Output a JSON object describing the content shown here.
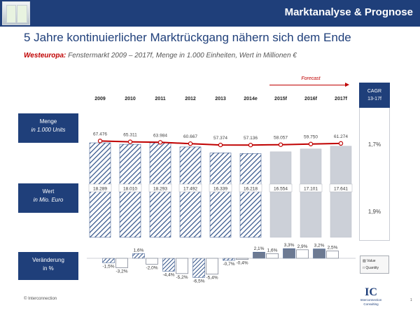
{
  "header": {
    "band_title": "Marktanalyse & Prognose",
    "title": "5 Jahre kontinuierlicher Marktrückgang nähern sich dem Ende",
    "subtitle_region": "Westeuropa:",
    "subtitle_rest": " Fenstermarkt 2009 – 2017f, Menge in 1.000 Einheiten, Wert in Millionen €"
  },
  "row_labels": {
    "menge_line1": "Menge",
    "menge_line2": "in 1.000 Units",
    "wert_line1": "Wert",
    "wert_line2": "in Mio. Euro",
    "change_line1": "Veränderung",
    "change_line2": "in %"
  },
  "forecast_label": "Forecast",
  "cagr": {
    "header_line1": "CAGR",
    "header_line2": "13-17f",
    "quantity": "1,7%",
    "value": "1,9%"
  },
  "legend": {
    "value": "Value",
    "quantity": "Quantity"
  },
  "footer": {
    "copyright": "© Interconnection",
    "page": "1"
  },
  "logo": {
    "mark": "IC",
    "line1": "Interconnection",
    "line2": "Consulting"
  },
  "colors": {
    "navy": "#1f3f7a",
    "red": "#c00000",
    "actual_hatch": "#2e4f86",
    "forecast_fill": "#ccd0d8"
  },
  "chart_data": {
    "type": "bar",
    "categories": [
      "2009",
      "2010",
      "2011",
      "2012",
      "2013",
      "2014e",
      "2015f",
      "2016f",
      "2017f"
    ],
    "forecast_from_index": 6,
    "series": [
      {
        "name": "Wert in Mio. Euro",
        "kind": "bar",
        "values": [
          18289,
          18010,
          18293,
          17492,
          16339,
          16218,
          16554,
          17101,
          17641
        ],
        "labels": [
          "18.289",
          "18.010",
          "18.293",
          "17.492",
          "16.339",
          "16.218",
          "16.554",
          "17.101",
          "17.641"
        ]
      },
      {
        "name": "Menge in 1.000 Units",
        "kind": "line",
        "values": [
          67476,
          65311,
          63984,
          60667,
          57374,
          57136,
          58057,
          59750,
          61274
        ],
        "labels": [
          "67.476",
          "65.311",
          "63.984",
          "60.667",
          "57.374",
          "57.136",
          "58.057",
          "59.750",
          "61.274"
        ]
      }
    ],
    "change_pct": {
      "value": [
        -1.5,
        1.6,
        -4.4,
        -6.5,
        -0.7,
        2.1,
        3.3,
        3.2
      ],
      "value_labels": [
        "-1,5%",
        "1,6%",
        "-4,4%",
        "-6,5%",
        "-0,7%",
        "2,1%",
        "3,3%",
        "3,2%"
      ],
      "quantity": [
        -3.2,
        -2.0,
        -5.2,
        -5.4,
        -0.4,
        1.6,
        2.9,
        2.5
      ],
      "quantity_labels": [
        "-3,2%",
        "-2,0%",
        "-5,2%",
        "-5,4%",
        "-0,4%",
        "1,6%",
        "2,9%",
        "2,5%"
      ]
    }
  }
}
